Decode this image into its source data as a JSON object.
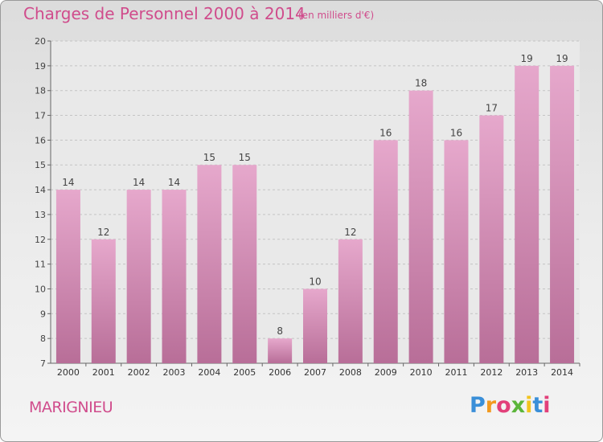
{
  "header": {
    "title": "Charges de Personnel 2000 à 2014",
    "unit": "(en milliers d'€)"
  },
  "footer": {
    "commune": "MARIGNIEU",
    "brand": "Proxiti"
  },
  "colors": {
    "bar_top": "#e6a8cc",
    "bar_bottom": "#b86e98",
    "accent": "#d04c8c"
  },
  "chart_data": {
    "type": "bar",
    "title": "Charges de Personnel 2000 à 2014",
    "subtitle": "(en milliers d'€)",
    "xlabel": "",
    "ylabel": "",
    "categories": [
      "2000",
      "2001",
      "2002",
      "2003",
      "2004",
      "2005",
      "2006",
      "2007",
      "2008",
      "2009",
      "2010",
      "2011",
      "2012",
      "2013",
      "2014"
    ],
    "values": [
      14,
      12,
      14,
      14,
      15,
      15,
      8,
      10,
      12,
      16,
      18,
      16,
      17,
      19,
      19
    ],
    "ylim": [
      7,
      20
    ],
    "yticks": [
      7,
      8,
      9,
      10,
      11,
      12,
      13,
      14,
      15,
      16,
      17,
      18,
      19,
      20
    ],
    "grid": true,
    "data_labels": true
  }
}
